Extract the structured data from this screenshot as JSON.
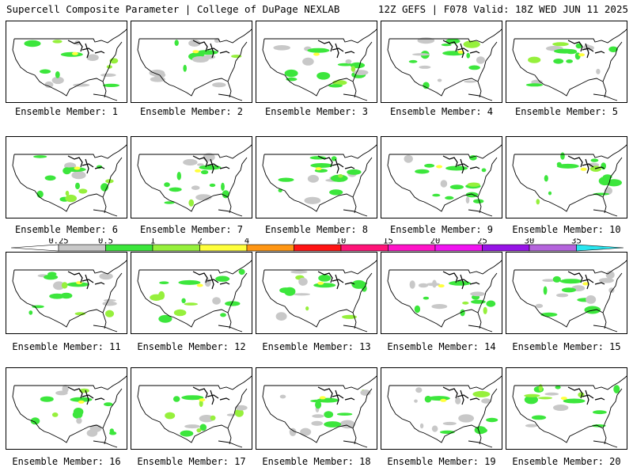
{
  "header": {
    "left": "Supercell Composite Parameter | College of DuPage NEXLAB",
    "right": "12Z GEFS | F078 Valid: 18Z WED JUN 11 2025"
  },
  "colorbar": {
    "ticks": [
      "0.25",
      "0.5",
      "1",
      "2",
      "4",
      "7",
      "10",
      "15",
      "20",
      "25",
      "30",
      "35"
    ],
    "colors": [
      "#c8c8c8",
      "#3ce63c",
      "#96f03c",
      "#ffff3c",
      "#ff9614",
      "#ff1414",
      "#ff1478",
      "#ff14c8",
      "#f014f0",
      "#9614e6",
      "#b464dc",
      "#28e6f0"
    ]
  },
  "panels": [
    {
      "label": "Ensemble Member: 1"
    },
    {
      "label": "Ensemble Member: 2"
    },
    {
      "label": "Ensemble Member: 3"
    },
    {
      "label": "Ensemble Member: 4"
    },
    {
      "label": "Ensemble Member: 5"
    },
    {
      "label": "Ensemble Member: 6"
    },
    {
      "label": "Ensemble Member: 7"
    },
    {
      "label": "Ensemble Member: 8"
    },
    {
      "label": "Ensemble Member: 9"
    },
    {
      "label": "Ensemble Member: 10"
    },
    {
      "label": "Ensemble Member: 11"
    },
    {
      "label": "Ensemble Member: 12"
    },
    {
      "label": "Ensemble Member: 13"
    },
    {
      "label": "Ensemble Member: 14"
    },
    {
      "label": "Ensemble Member: 15"
    },
    {
      "label": "Ensemble Member: 16"
    },
    {
      "label": "Ensemble Member: 17"
    },
    {
      "label": "Ensemble Member: 18"
    },
    {
      "label": "Ensemble Member: 19"
    },
    {
      "label": "Ensemble Member: 20"
    }
  ]
}
